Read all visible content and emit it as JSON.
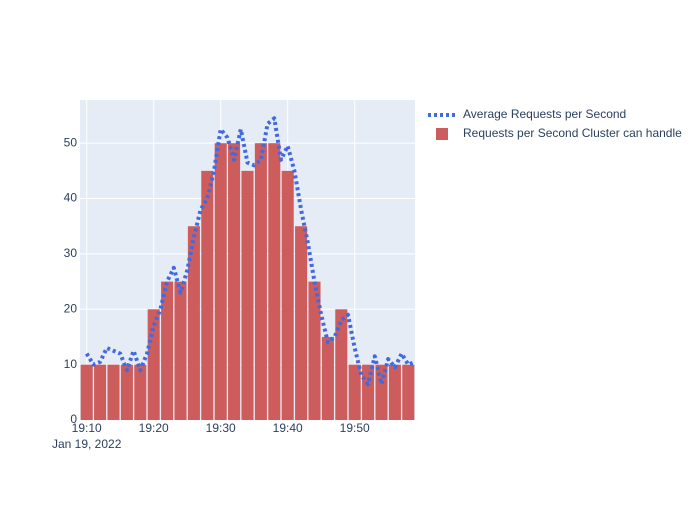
{
  "chart_data": {
    "type": "bar",
    "xlim": [
      "2022-01-19 19:09",
      "2022-01-19 19:59"
    ],
    "ylim": [
      0,
      57.8
    ],
    "yticks": [
      0,
      10,
      20,
      30,
      40,
      50
    ],
    "xticks": [
      {
        "value": "2022-01-19 19:10",
        "label": "19:10"
      },
      {
        "value": "2022-01-19 19:20",
        "label": "19:20"
      },
      {
        "value": "2022-01-19 19:30",
        "label": "19:30"
      },
      {
        "value": "2022-01-19 19:40",
        "label": "19:40"
      },
      {
        "value": "2022-01-19 19:50",
        "label": "19:50"
      }
    ],
    "xtick_date": "Jan 19, 2022",
    "grid": true,
    "legend": "right",
    "series": [
      {
        "name": "Average Requests per Second",
        "type": "line",
        "color": "#4169e1",
        "x": [
          "2022-01-19 19:10",
          "2022-01-19 19:11",
          "2022-01-19 19:12",
          "2022-01-19 19:13",
          "2022-01-19 19:14",
          "2022-01-19 19:15",
          "2022-01-19 19:16",
          "2022-01-19 19:17",
          "2022-01-19 19:18",
          "2022-01-19 19:19",
          "2022-01-19 19:20",
          "2022-01-19 19:21",
          "2022-01-19 19:22",
          "2022-01-19 19:23",
          "2022-01-19 19:24",
          "2022-01-19 19:25",
          "2022-01-19 19:26",
          "2022-01-19 19:27",
          "2022-01-19 19:28",
          "2022-01-19 19:29",
          "2022-01-19 19:30",
          "2022-01-19 19:31",
          "2022-01-19 19:32",
          "2022-01-19 19:33",
          "2022-01-19 19:34",
          "2022-01-19 19:35",
          "2022-01-19 19:36",
          "2022-01-19 19:37",
          "2022-01-19 19:38",
          "2022-01-19 19:39",
          "2022-01-19 19:40",
          "2022-01-19 19:41",
          "2022-01-19 19:42",
          "2022-01-19 19:43",
          "2022-01-19 19:44",
          "2022-01-19 19:45",
          "2022-01-19 19:46",
          "2022-01-19 19:47",
          "2022-01-19 19:48",
          "2022-01-19 19:49",
          "2022-01-19 19:50",
          "2022-01-19 19:51",
          "2022-01-19 19:52",
          "2022-01-19 19:53",
          "2022-01-19 19:54",
          "2022-01-19 19:55",
          "2022-01-19 19:56",
          "2022-01-19 19:57",
          "2022-01-19 19:58",
          "2022-01-19 19:59"
        ],
        "values": [
          12,
          10,
          10.5,
          13,
          12.5,
          12,
          9,
          12.5,
          9,
          12,
          17,
          20,
          25,
          27.5,
          23,
          27,
          33,
          38,
          40,
          45,
          52.5,
          51,
          47,
          52.5,
          46.5,
          46,
          47,
          53.5,
          54.5,
          47,
          49.5,
          45,
          38,
          32,
          25,
          19,
          14,
          15,
          18,
          19,
          13,
          8,
          6.5,
          11.5,
          6.5,
          11,
          9.5,
          12,
          10,
          10.5
        ]
      },
      {
        "name": "Requests per Second Cluster can handle",
        "type": "bar",
        "color": "#cd5c5c",
        "x": [
          "2022-01-19 19:10",
          "2022-01-19 19:12",
          "2022-01-19 19:14",
          "2022-01-19 19:16",
          "2022-01-19 19:18",
          "2022-01-19 19:20",
          "2022-01-19 19:22",
          "2022-01-19 19:24",
          "2022-01-19 19:26",
          "2022-01-19 19:28",
          "2022-01-19 19:30",
          "2022-01-19 19:32",
          "2022-01-19 19:34",
          "2022-01-19 19:36",
          "2022-01-19 19:38",
          "2022-01-19 19:40",
          "2022-01-19 19:42",
          "2022-01-19 19:44",
          "2022-01-19 19:46",
          "2022-01-19 19:48",
          "2022-01-19 19:50",
          "2022-01-19 19:52",
          "2022-01-19 19:54",
          "2022-01-19 19:56",
          "2022-01-19 19:58"
        ],
        "values": [
          10,
          10,
          10,
          10,
          10,
          20,
          25,
          25,
          35,
          45,
          50,
          50,
          45,
          50,
          50,
          45,
          35,
          25,
          15,
          20,
          10,
          10,
          10,
          10,
          10
        ]
      }
    ]
  }
}
